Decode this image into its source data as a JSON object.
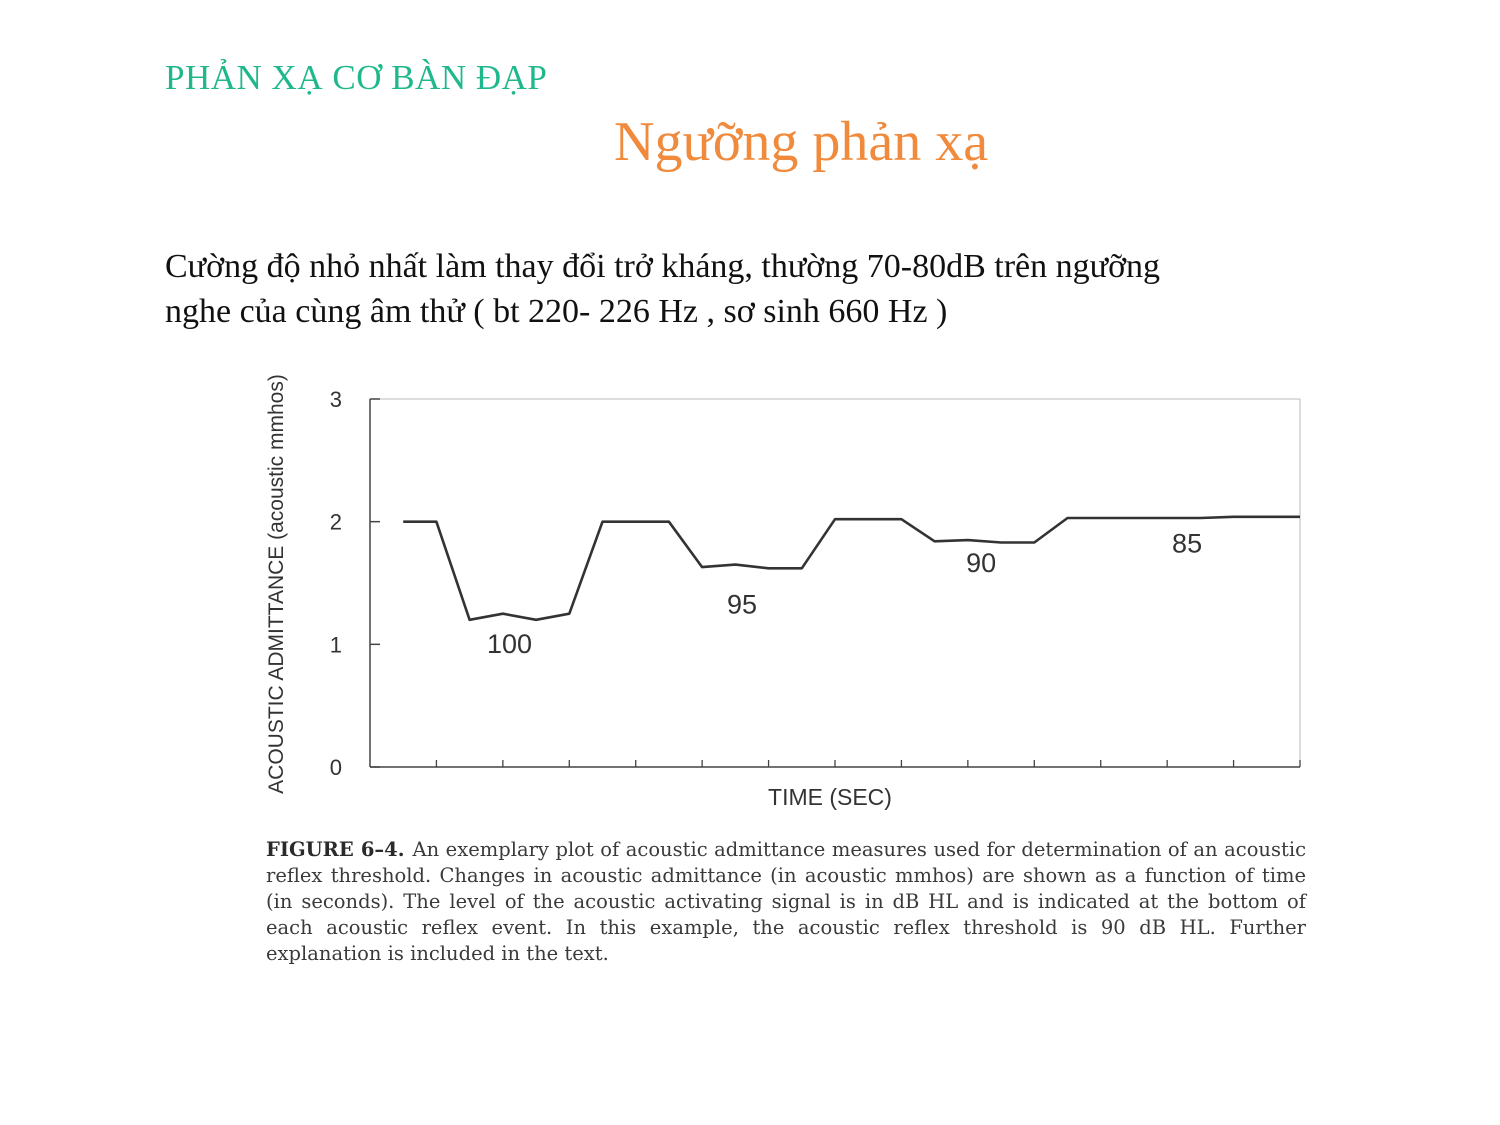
{
  "slide": {
    "section_title": "PHẢN XẠ CƠ BÀN ĐẠP",
    "title": "Ngưỡng phản xạ",
    "body_line1": "Cường độ nhỏ nhất làm thay đổi trở kháng, thường 70-80dB trên ngưỡng",
    "body_line2": "nghe của cùng âm thử ( bt 220- 226 Hz , sơ sinh 660 Hz )"
  },
  "figure": {
    "label": "FIGURE 6–4.",
    "caption": "An exemplary plot of acoustic admittance measures used for determination of an acoustic reflex threshold. Changes in acoustic admittance (in acoustic mmhos) are shown as a function of time (in seconds). The level of the acoustic activating signal is in dB HL and is indicated at the bottom of each acoustic reflex event. In this example, the acoustic reflex threshold is 90 dB HL. Further explanation is included in the text."
  },
  "chart_data": {
    "type": "line",
    "xlabel": "TIME (SEC)",
    "ylabel": "ACOUSTIC ADMITTANCE (acoustic mmhos)",
    "ylim": [
      0,
      3
    ],
    "xlim": [
      0,
      14
    ],
    "yticks": [
      "0",
      "1",
      "2",
      "3"
    ],
    "x_tick_count": 14,
    "grid": false,
    "series": [
      {
        "x": [
          0.5,
          1.0,
          1.5,
          2.0,
          2.5,
          3.0,
          3.5,
          4.0,
          4.5,
          5.0,
          5.5,
          6.0,
          6.5,
          7.0,
          7.5,
          8.0,
          8.5,
          9.0,
          9.5,
          10.0,
          10.5,
          11.0,
          11.5,
          12.0,
          12.5,
          13.0,
          13.5,
          14.0
        ],
        "y": [
          2.0,
          2.0,
          1.2,
          1.25,
          1.2,
          1.25,
          2.0,
          2.0,
          2.0,
          1.63,
          1.65,
          1.62,
          1.62,
          2.02,
          2.02,
          2.02,
          1.84,
          1.85,
          1.83,
          1.83,
          2.03,
          2.03,
          2.03,
          2.03,
          2.03,
          2.04,
          2.04,
          2.04
        ]
      }
    ],
    "annotations": [
      {
        "text": "100",
        "x": 2.1,
        "y": 0.93
      },
      {
        "text": "95",
        "x": 5.6,
        "y": 1.25
      },
      {
        "text": "90",
        "x": 9.2,
        "y": 1.59
      },
      {
        "text": "85",
        "x": 12.3,
        "y": 1.75
      }
    ],
    "colors": {
      "line": "#333333",
      "axis": "#444444"
    }
  }
}
